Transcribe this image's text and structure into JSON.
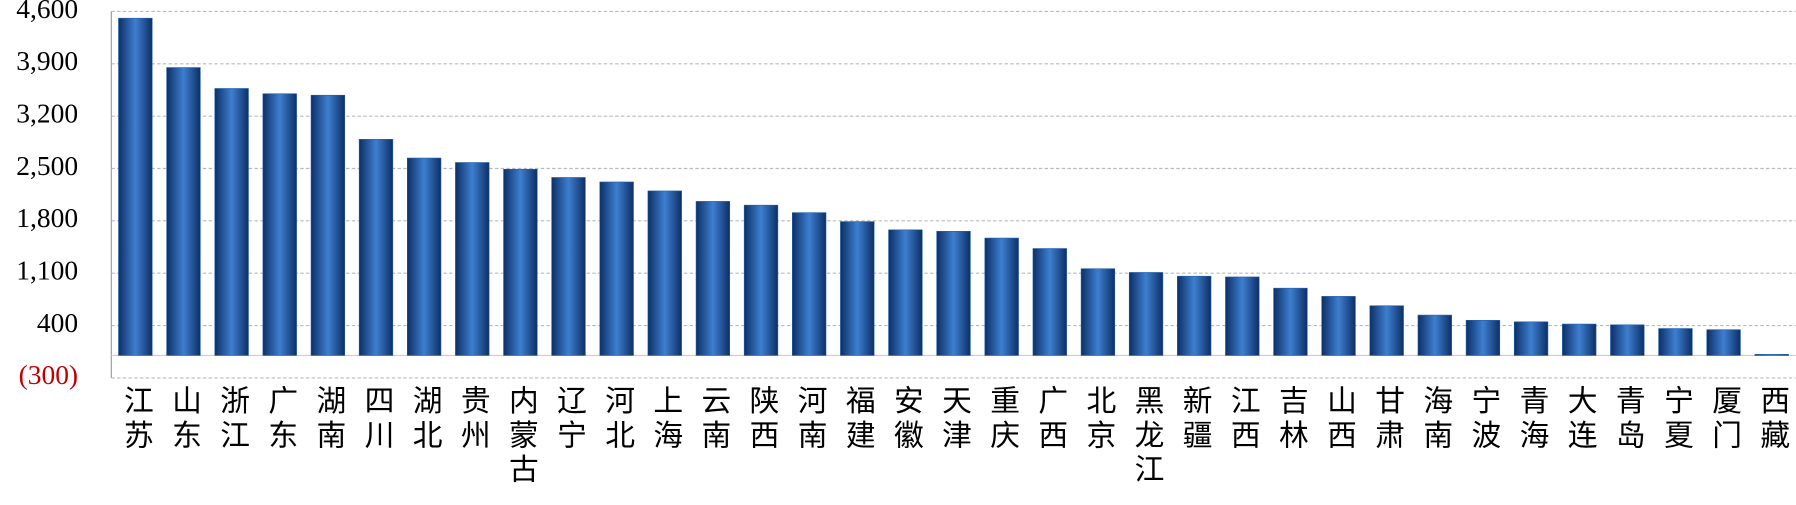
{
  "chart_data": {
    "type": "bar",
    "categories": [
      "江苏",
      "山东",
      "浙江",
      "广东",
      "湖南",
      "四川",
      "湖北",
      "贵州",
      "内蒙古",
      "辽宁",
      "河北",
      "上海",
      "云南",
      "陕西",
      "河南",
      "福建",
      "安徽",
      "天津",
      "重庆",
      "广西",
      "北京",
      "黑龙江",
      "新疆",
      "江西",
      "吉林",
      "山西",
      "甘肃",
      "海南",
      "宁波",
      "青海",
      "大连",
      "青岛",
      "宁夏",
      "厦门",
      "西藏"
    ],
    "values": [
      4510,
      3850,
      3570,
      3500,
      3480,
      2890,
      2640,
      2580,
      2490,
      2380,
      2320,
      2200,
      2060,
      2010,
      1910,
      1790,
      1680,
      1660,
      1570,
      1430,
      1160,
      1110,
      1060,
      1050,
      900,
      790,
      665,
      540,
      470,
      450,
      420,
      410,
      360,
      345,
      15
    ],
    "color": "#1f5fae",
    "ylim": [
      -300,
      4600
    ],
    "yticks": [
      {
        "value": -300,
        "label": "(300)"
      },
      400,
      {
        "value": 1100,
        "label": "1,100"
      },
      {
        "value": 1800,
        "label": "1,800"
      },
      {
        "value": 2500,
        "label": "2,500"
      },
      {
        "value": 3200,
        "label": "3,200"
      },
      {
        "value": 3900,
        "label": "3,900"
      },
      {
        "value": 4600,
        "label": "4,600"
      }
    ],
    "negative_tick_color": "#c00000",
    "grid": true
  }
}
